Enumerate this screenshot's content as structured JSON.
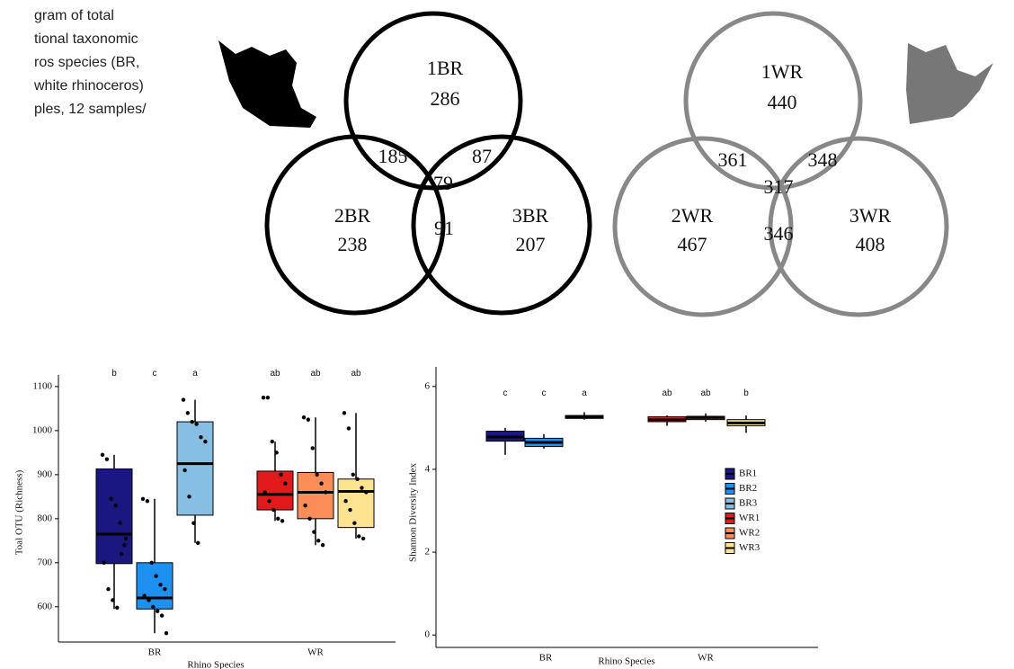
{
  "caption": [
    "gram of total",
    "tional taxonomic",
    "ros species (BR,",
    "white rhinoceros)",
    "ples, 12 samples/"
  ],
  "venn": [
    {
      "regions": [
        {
          "label": "1BR",
          "count": 286
        },
        {
          "label": "2BR",
          "count": 238
        },
        {
          "label": "3BR",
          "count": 207
        }
      ],
      "overlaps": [
        185,
        87,
        91,
        79
      ]
    },
    {
      "regions": [
        {
          "label": "1WR",
          "count": 440
        },
        {
          "label": "2WR",
          "count": 467
        },
        {
          "label": "3WR",
          "count": 408
        }
      ],
      "overlaps": [
        361,
        348,
        346,
        317
      ]
    }
  ],
  "chart_data": [
    {
      "type": "box",
      "ylabel": "Toal OTU (Richness)",
      "xlabel": "Rhino Species",
      "categories": [
        "BR",
        "WR"
      ],
      "ylim": [
        520,
        1110
      ],
      "yticks": [
        600,
        700,
        800,
        900,
        1000,
        1100
      ],
      "series": [
        {
          "color": "#1a1780",
          "letter": "b",
          "values": [
            595,
            698,
            765,
            913,
            945
          ],
          "points": [
            945,
            935,
            845,
            830,
            790,
            740,
            700,
            640,
            615,
            598,
            720,
            755
          ]
        },
        {
          "color": "#1e90f0",
          "letter": "c",
          "values": [
            540,
            595,
            620,
            700,
            845
          ],
          "points": [
            845,
            840,
            700,
            670,
            650,
            640,
            625,
            615,
            600,
            590,
            580,
            540
          ]
        },
        {
          "color": "#86bfe3",
          "letter": "a",
          "values": [
            745,
            808,
            925,
            1020,
            1070
          ],
          "points": [
            1070,
            1040,
            1020,
            1015,
            985,
            975,
            910,
            850,
            790,
            745
          ]
        },
        {
          "color": "#e31a1c",
          "letter": "ab",
          "values": [
            795,
            820,
            855,
            908,
            975
          ],
          "points": [
            1075,
            1075,
            975,
            950,
            900,
            880,
            860,
            840,
            820,
            800,
            795
          ]
        },
        {
          "color": "#fc8d59",
          "letter": "ab",
          "values": [
            740,
            800,
            860,
            905,
            1030
          ],
          "points": [
            1030,
            1025,
            960,
            900,
            880,
            860,
            830,
            800,
            770,
            750,
            740
          ]
        },
        {
          "color": "#fee391",
          "letter": "ab",
          "values": [
            755,
            780,
            862,
            890,
            1040
          ],
          "points": [
            1040,
            1005,
            900,
            890,
            870,
            860,
            840,
            820,
            790,
            760,
            755
          ]
        }
      ]
    },
    {
      "type": "box",
      "ylabel": "Shannon Diversity Index",
      "xlabel": "Rhino Species",
      "categories": [
        "BR",
        "WR"
      ],
      "ylim": [
        -0.3,
        6.3
      ],
      "yticks": [
        0,
        2,
        4,
        6
      ],
      "series": [
        {
          "name": "BR1",
          "color": "#1a1780",
          "letter": "c",
          "values": [
            4.35,
            4.68,
            4.78,
            4.92,
            5.0
          ]
        },
        {
          "name": "BR2",
          "color": "#1e90f0",
          "letter": "c",
          "values": [
            4.5,
            4.55,
            4.65,
            4.75,
            4.85
          ]
        },
        {
          "name": "BR3",
          "color": "#86bfe3",
          "letter": "a",
          "values": [
            5.2,
            5.23,
            5.27,
            5.3,
            5.38
          ]
        },
        {
          "name": "WR1",
          "color": "#e31a1c",
          "letter": "ab",
          "values": [
            5.05,
            5.15,
            5.2,
            5.27,
            5.3
          ]
        },
        {
          "name": "WR2",
          "color": "#fc8d59",
          "letter": "ab",
          "values": [
            5.15,
            5.2,
            5.25,
            5.28,
            5.35
          ]
        },
        {
          "name": "WR3",
          "color": "#fee391",
          "letter": "b",
          "values": [
            4.88,
            5.05,
            5.12,
            5.2,
            5.3
          ]
        }
      ]
    }
  ]
}
